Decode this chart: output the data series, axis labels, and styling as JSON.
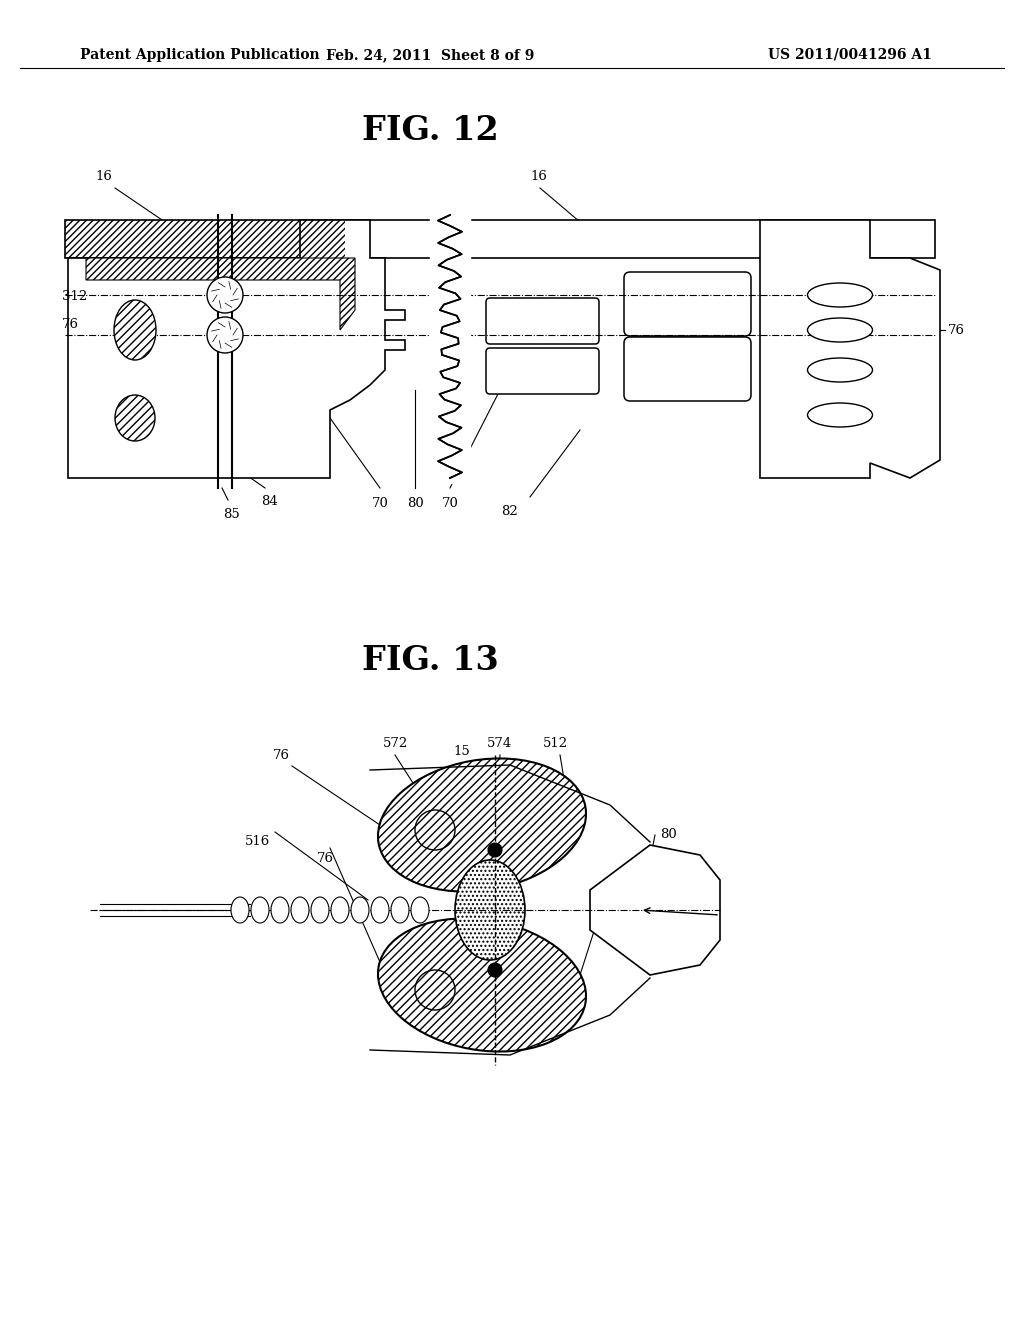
{
  "bg_color": "#ffffff",
  "header_text": "Patent Application Publication",
  "header_date": "Feb. 24, 2011  Sheet 8 of 9",
  "header_patent": "US 2011/0041296 A1",
  "fig12_title": "FIG. 12",
  "fig13_title": "FIG. 13",
  "header_fontsize": 10,
  "fig_title_fontsize": 24,
  "label_fontsize": 9.5,
  "page_width": 10.24,
  "page_height": 13.2,
  "dpi": 100
}
